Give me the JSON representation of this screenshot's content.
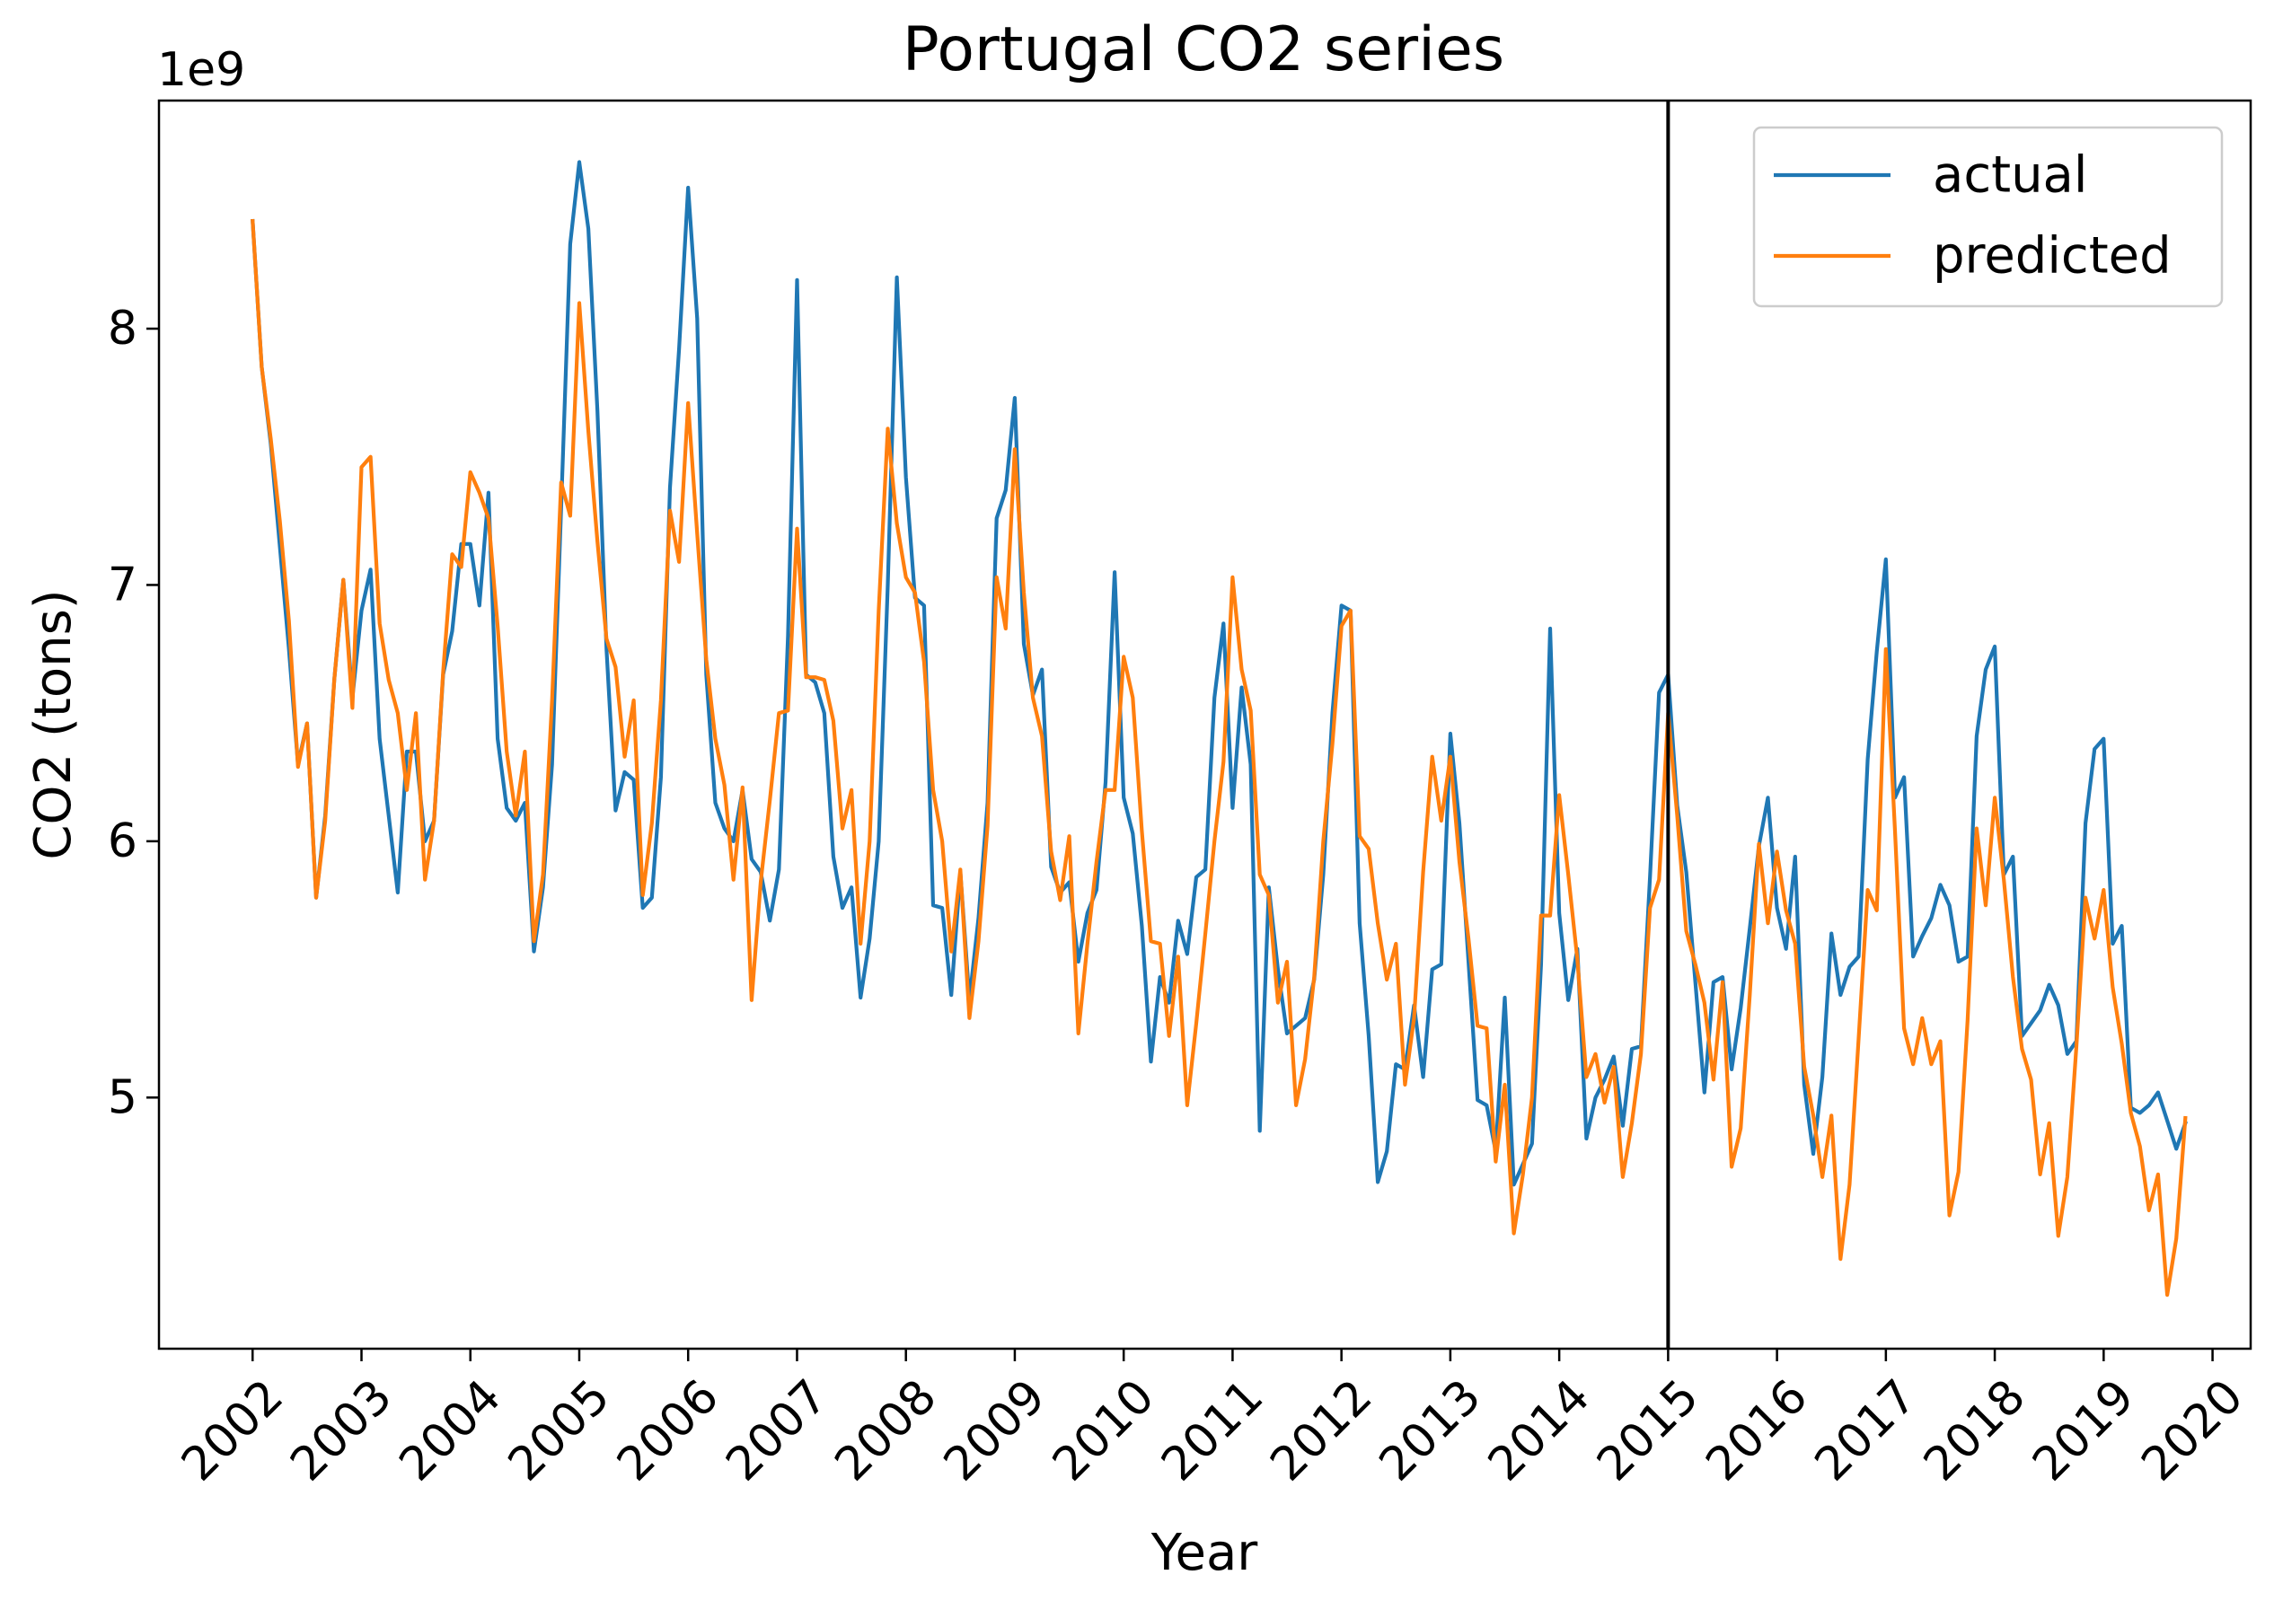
{
  "chart_data": {
    "type": "line",
    "title": "Portugal  CO2 series",
    "xlabel": "Year",
    "ylabel": "CO2 (tons)",
    "y_offset_label": "1e9",
    "x_ticks": [
      "2002",
      "2003",
      "2004",
      "2005",
      "2006",
      "2007",
      "2008",
      "2009",
      "2010",
      "2011",
      "2012",
      "2013",
      "2014",
      "2015",
      "2016",
      "2017",
      "2018",
      "2019",
      "2020"
    ],
    "y_ticks": [
      5,
      6,
      7,
      8
    ],
    "xlim": [
      2001.14,
      2020.35
    ],
    "ylim": [
      4.02,
      8.89
    ],
    "y_multiplier": 1000000000,
    "x_start": "2002-01",
    "x_step_months": 1,
    "split_marker": 2015,
    "legend_position": "top-right",
    "grid": false,
    "series": [
      {
        "name": "actual",
        "color": "#1f77b4",
        "values": [
          8.42,
          7.85,
          7.55,
          7.15,
          6.75,
          6.3,
          6.46,
          5.78,
          6.1,
          6.63,
          7.02,
          6.56,
          6.9,
          7.06,
          6.4,
          6.1,
          5.8,
          6.35,
          6.35,
          6.0,
          6.08,
          6.65,
          6.82,
          7.16,
          7.16,
          6.92,
          7.36,
          6.4,
          6.13,
          6.08,
          6.15,
          5.57,
          5.82,
          6.3,
          7.3,
          8.33,
          8.65,
          8.39,
          7.68,
          6.75,
          6.12,
          6.27,
          6.24,
          5.74,
          5.78,
          6.25,
          7.38,
          7.92,
          8.55,
          8.04,
          6.65,
          6.15,
          6.05,
          6.0,
          6.2,
          5.93,
          5.88,
          5.69,
          5.89,
          6.8,
          8.19,
          6.65,
          6.62,
          6.5,
          5.94,
          5.74,
          5.82,
          5.39,
          5.62,
          6.0,
          7.0,
          8.2,
          7.42,
          6.95,
          6.92,
          5.75,
          5.74,
          5.4,
          5.88,
          5.38,
          5.7,
          6.15,
          7.26,
          7.37,
          7.73,
          6.77,
          6.57,
          6.67,
          5.9,
          5.8,
          5.84,
          5.53,
          5.72,
          5.81,
          6.23,
          7.05,
          6.17,
          6.03,
          5.67,
          5.14,
          5.47,
          5.37,
          5.69,
          5.56,
          5.86,
          5.89,
          6.56,
          6.85,
          6.13,
          6.6,
          6.3,
          4.87,
          5.82,
          5.5,
          5.25,
          5.28,
          5.31,
          5.46,
          5.87,
          6.5,
          6.92,
          6.9,
          5.68,
          5.24,
          4.67,
          4.79,
          5.13,
          5.11,
          5.36,
          5.08,
          5.5,
          5.52,
          6.42,
          6.07,
          5.53,
          4.99,
          4.97,
          4.79,
          5.39,
          4.66,
          4.74,
          4.82,
          5.52,
          6.83,
          5.72,
          5.38,
          5.58,
          4.84,
          5.0,
          5.07,
          5.16,
          4.89,
          5.19,
          5.2,
          5.86,
          6.58,
          6.65,
          6.14,
          5.88,
          5.45,
          5.02,
          5.45,
          5.47,
          5.11,
          5.35,
          5.66,
          5.98,
          6.17,
          5.74,
          5.58,
          5.94,
          5.05,
          4.78,
          5.08,
          5.64,
          5.4,
          5.51,
          5.55,
          6.32,
          6.74,
          7.1,
          6.17,
          6.25,
          5.55,
          5.63,
          5.7,
          5.83,
          5.75,
          5.53,
          5.55,
          6.41,
          6.67,
          6.76,
          5.87,
          5.94,
          5.24,
          5.29,
          5.34,
          5.44,
          5.36,
          5.17,
          5.22,
          6.07,
          6.36,
          6.4,
          5.6,
          5.67,
          4.96,
          4.94,
          4.97,
          5.02,
          4.91,
          4.8,
          4.9
        ]
      },
      {
        "name": "predicted",
        "color": "#ff7f0e",
        "values": [
          8.42,
          7.85,
          7.57,
          7.25,
          6.86,
          6.29,
          6.46,
          5.78,
          6.08,
          6.63,
          7.02,
          6.52,
          7.46,
          7.5,
          6.85,
          6.63,
          6.5,
          6.2,
          6.5,
          5.85,
          6.08,
          6.66,
          7.12,
          7.07,
          7.44,
          7.36,
          7.26,
          6.84,
          6.35,
          6.1,
          6.35,
          5.61,
          5.87,
          6.55,
          7.4,
          7.27,
          8.1,
          7.6,
          7.17,
          6.79,
          6.68,
          6.33,
          6.55,
          5.79,
          6.07,
          6.55,
          7.29,
          7.09,
          7.71,
          7.2,
          6.71,
          6.4,
          6.22,
          5.85,
          6.21,
          5.38,
          5.84,
          6.16,
          6.5,
          6.51,
          7.22,
          6.64,
          6.64,
          6.63,
          6.47,
          6.05,
          6.2,
          5.6,
          6.0,
          6.9,
          7.61,
          7.24,
          7.03,
          6.97,
          6.7,
          6.2,
          6.0,
          5.57,
          5.89,
          5.31,
          5.61,
          6.06,
          7.03,
          6.83,
          7.53,
          6.97,
          6.56,
          6.41,
          5.96,
          5.77,
          6.02,
          5.25,
          5.6,
          5.92,
          6.2,
          6.2,
          6.72,
          6.56,
          6.04,
          5.61,
          5.6,
          5.24,
          5.55,
          4.97,
          5.29,
          5.64,
          6.0,
          6.31,
          7.03,
          6.67,
          6.51,
          5.87,
          5.79,
          5.37,
          5.53,
          4.97,
          5.15,
          5.47,
          6.0,
          6.38,
          6.84,
          6.9,
          6.02,
          5.97,
          5.68,
          5.46,
          5.6,
          5.05,
          5.31,
          5.88,
          6.33,
          6.08,
          6.33,
          5.92,
          5.62,
          5.28,
          5.27,
          4.75,
          5.05,
          4.47,
          4.7,
          5.0,
          5.71,
          5.71,
          6.18,
          5.87,
          5.54,
          5.08,
          5.17,
          4.98,
          5.12,
          4.69,
          4.9,
          5.17,
          5.74,
          5.85,
          6.5,
          6.1,
          5.65,
          5.52,
          5.37,
          5.07,
          5.45,
          4.73,
          4.88,
          5.4,
          5.99,
          5.68,
          5.96,
          5.73,
          5.6,
          5.12,
          4.93,
          4.69,
          4.93,
          4.37,
          4.66,
          5.23,
          5.81,
          5.73,
          6.75,
          6.04,
          5.27,
          5.13,
          5.31,
          5.13,
          5.22,
          4.54,
          4.71,
          5.3,
          6.05,
          5.75,
          6.17,
          5.85,
          5.47,
          5.19,
          5.07,
          4.7,
          4.9,
          4.46,
          4.69,
          5.2,
          5.78,
          5.62,
          5.81,
          5.43,
          5.21,
          4.94,
          4.81,
          4.56,
          4.7,
          4.23,
          4.45,
          4.92
        ]
      }
    ]
  }
}
